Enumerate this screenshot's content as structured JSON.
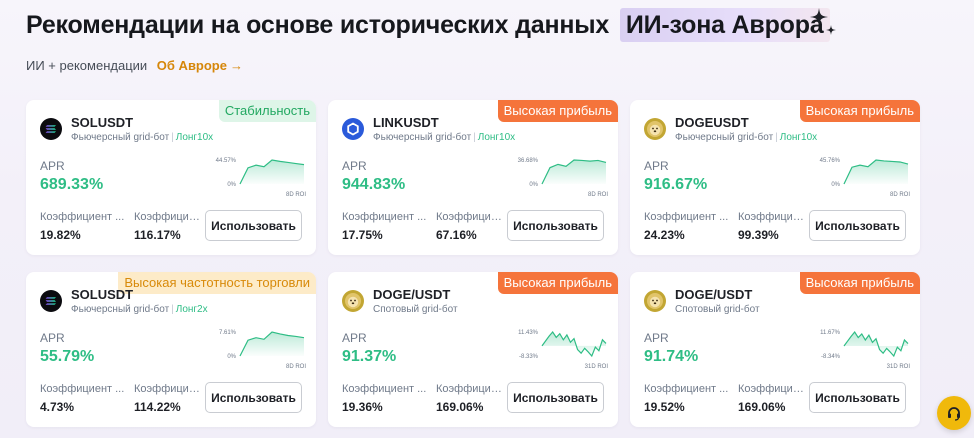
{
  "header": {
    "title": "Рекомендации на основе исторических данных",
    "highlight": "ИИ-зона Аврора",
    "sub_label": "ИИ + рекомендации",
    "about_link": "Об Авроре"
  },
  "ui": {
    "apr_label": "APR",
    "use_button": "Использовать"
  },
  "cards": [
    {
      "badge": "Стабильность",
      "badge_style": "green",
      "coin_icon": "sol-icon",
      "symbol": "SOLUSDT",
      "bot_type": "Фьючерсный grid-бот",
      "leverage": "Лонг10x",
      "apr": "689.33%",
      "metric1_label": "Коэффициент ...",
      "metric1_value": "19.82%",
      "metric2_label": "Коэффициент ...",
      "metric2_value": "116.17%",
      "chart": {
        "top_label": "44.57%",
        "zero_label": "0%",
        "period": "8D ROI",
        "y_max": 44.57,
        "y_min": 0,
        "values": [
          0,
          30,
          35,
          32,
          44.57,
          42,
          40,
          38,
          36
        ]
      }
    },
    {
      "badge": "Высокая прибыль",
      "badge_style": "orange",
      "coin_icon": "link-icon",
      "symbol": "LINKUSDT",
      "bot_type": "Фьючерсный grid-бот",
      "leverage": "Лонг10x",
      "apr": "944.83%",
      "metric1_label": "Коэффициент ...",
      "metric1_value": "17.75%",
      "metric2_label": "Коэффициент ...",
      "metric2_value": "67.16%",
      "chart": {
        "top_label": "36.68%",
        "zero_label": "0%",
        "period": "8D ROI",
        "y_max": 36.68,
        "y_min": 0,
        "values": [
          0,
          25,
          30,
          27,
          36.68,
          36,
          35,
          36,
          33
        ]
      }
    },
    {
      "badge": "Высокая прибыль",
      "badge_style": "orange",
      "coin_icon": "doge-icon",
      "symbol": "DOGEUSDT",
      "bot_type": "Фьючерсный grid-бот",
      "leverage": "Лонг10x",
      "apr": "916.67%",
      "metric1_label": "Коэффициент ...",
      "metric1_value": "24.23%",
      "metric2_label": "Коэффициент ...",
      "metric2_value": "99.39%",
      "chart": {
        "top_label": "45.76%",
        "zero_label": "0%",
        "period": "8D ROI",
        "y_max": 45.76,
        "y_min": 0,
        "values": [
          0,
          32,
          36,
          33,
          45.76,
          44,
          43,
          42,
          38
        ]
      }
    },
    {
      "badge": "Высокая частотность торговли",
      "badge_style": "yellow",
      "coin_icon": "sol-icon",
      "symbol": "SOLUSDT",
      "bot_type": "Фьючерсный grid-бот",
      "leverage": "Лонг2x",
      "apr": "55.79%",
      "metric1_label": "Коэффициент ...",
      "metric1_value": "4.73%",
      "metric2_label": "Коэффициент ...",
      "metric2_value": "114.22%",
      "chart": {
        "top_label": "7.61%",
        "zero_label": "0%",
        "period": "8D ROI",
        "y_max": 7.61,
        "y_min": 0,
        "values": [
          0,
          5,
          5.8,
          5.3,
          7.61,
          7,
          6.5,
          6.2,
          5.8
        ]
      }
    },
    {
      "badge": "Высокая прибыль",
      "badge_style": "orange",
      "coin_icon": "doge-icon",
      "symbol": "DOGE/USDT",
      "bot_type": "Спотовый grid-бот",
      "leverage": "",
      "apr": "91.37%",
      "metric1_label": "Коэффициент ...",
      "metric1_value": "19.36%",
      "metric2_label": "Коэффициент ...",
      "metric2_value": "169.06%",
      "chart": {
        "top_label": "11.43%",
        "zero_label": "-8.33%",
        "period": "31D ROI",
        "y_max": 11.43,
        "y_min": -8.33,
        "values": [
          0,
          4,
          8,
          11.43,
          7,
          10,
          5,
          9,
          3,
          6,
          -3,
          -6,
          -2,
          -5,
          -8.33,
          -1,
          -4,
          5,
          2
        ]
      }
    },
    {
      "badge": "Высокая прибыль",
      "badge_style": "orange",
      "coin_icon": "doge-icon",
      "symbol": "DOGE/USDT",
      "bot_type": "Спотовый grid-бот",
      "leverage": "",
      "apr": "91.74%",
      "metric1_label": "Коэффициент ...",
      "metric1_value": "19.52%",
      "metric2_label": "Коэффициент ...",
      "metric2_value": "169.06%",
      "chart": {
        "top_label": "11.67%",
        "zero_label": "-8.34%",
        "period": "31D ROI",
        "y_max": 11.67,
        "y_min": -8.34,
        "values": [
          0,
          4,
          8,
          11.67,
          7,
          10,
          5,
          9,
          3,
          6,
          -3,
          -6,
          -2,
          -5,
          -8.34,
          -1,
          -4,
          5,
          2
        ]
      }
    }
  ]
}
